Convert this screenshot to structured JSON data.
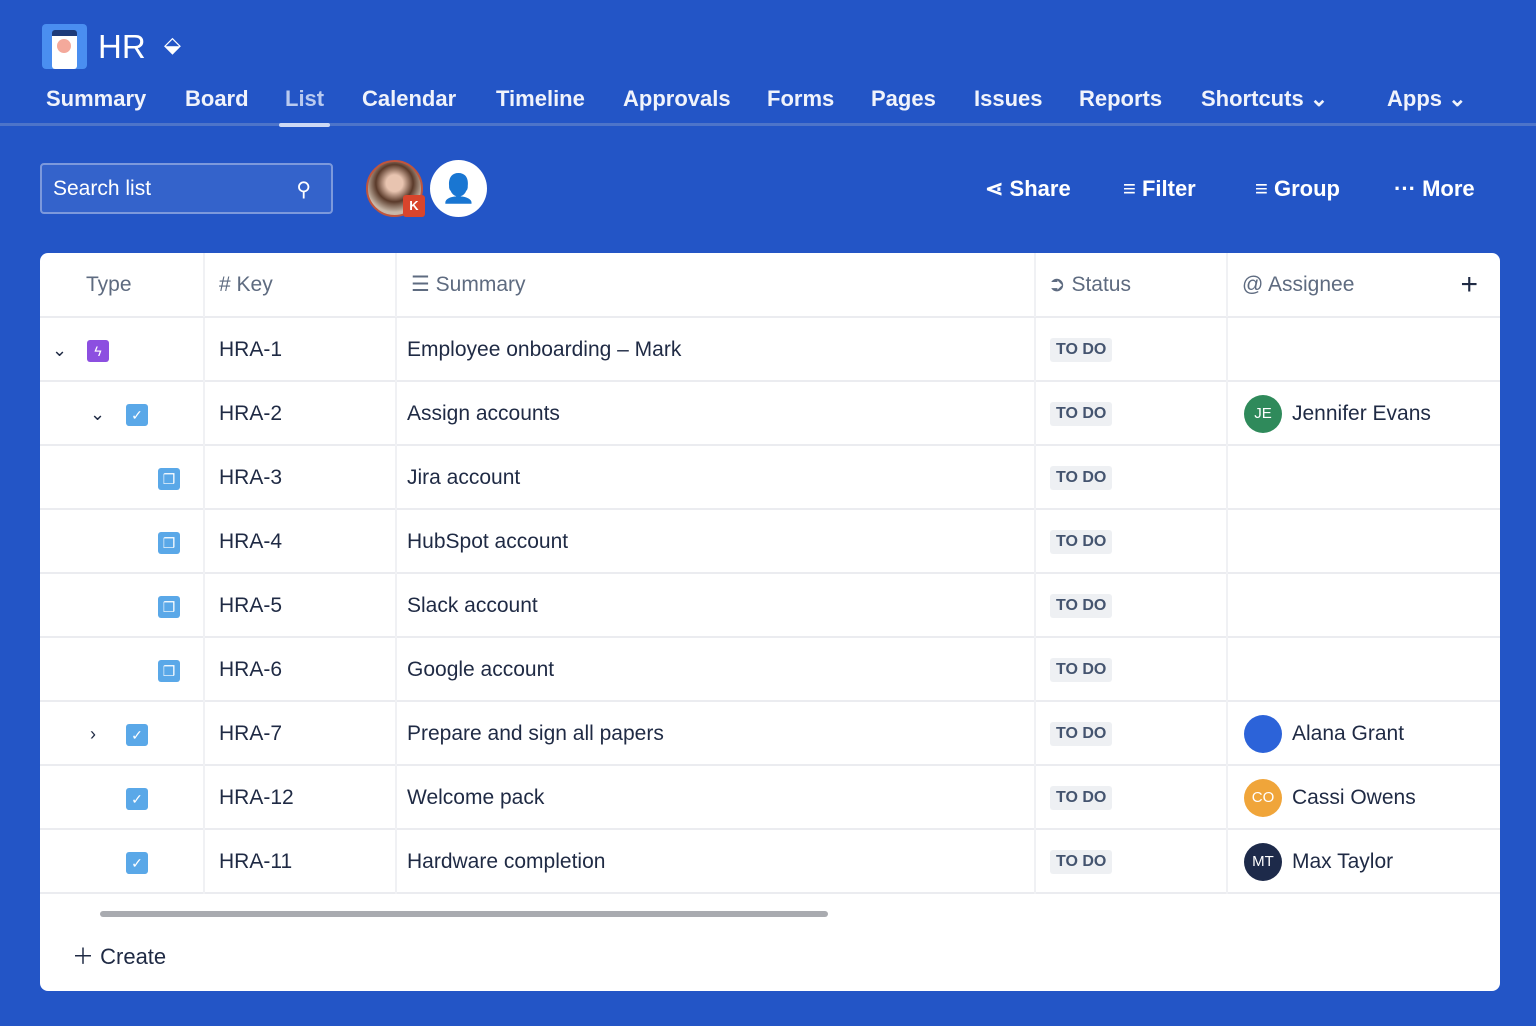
{
  "project": {
    "title": "HR",
    "logo_icon": "hr-project-logo",
    "theme_icon": "paint-bucket-icon"
  },
  "tabs": [
    {
      "label": "Summary"
    },
    {
      "label": "Board"
    },
    {
      "label": "List",
      "active": true
    },
    {
      "label": "Calendar"
    },
    {
      "label": "Timeline"
    },
    {
      "label": "Approvals"
    },
    {
      "label": "Forms"
    },
    {
      "label": "Pages"
    },
    {
      "label": "Issues"
    },
    {
      "label": "Reports"
    },
    {
      "label": "Shortcuts ⌄"
    },
    {
      "label": "Apps ⌄"
    }
  ],
  "search": {
    "placeholder": "Search list"
  },
  "avatar_badge": "K",
  "actions": {
    "share": "Share",
    "filter": "Filter",
    "group": "Group",
    "more": "More"
  },
  "columns": {
    "type": "Type",
    "key": "Key",
    "summary": "Summary",
    "status": "Status",
    "assignee": "Assignee"
  },
  "rows": [
    {
      "key": "HRA-1",
      "summary": "Employee onboarding – Mark",
      "status": "TO DO",
      "type": "epic",
      "level": 0,
      "expander": "⌄",
      "assignee": "",
      "initials": ""
    },
    {
      "key": "HRA-2",
      "summary": "Assign accounts",
      "status": "TO DO",
      "type": "task",
      "level": 1,
      "expander": "⌄",
      "assignee": "Jennifer Evans",
      "initials": "JE",
      "color": "#2f8a5b"
    },
    {
      "key": "HRA-3",
      "summary": "Jira account",
      "status": "TO DO",
      "type": "subtask",
      "level": 2,
      "expander": "",
      "assignee": "",
      "initials": ""
    },
    {
      "key": "HRA-4",
      "summary": "HubSpot account",
      "status": "TO DO",
      "type": "subtask",
      "level": 2,
      "expander": "",
      "assignee": "",
      "initials": ""
    },
    {
      "key": "HRA-5",
      "summary": "Slack account",
      "status": "TO DO",
      "type": "subtask",
      "level": 2,
      "expander": "",
      "assignee": "",
      "initials": ""
    },
    {
      "key": "HRA-6",
      "summary": "Google account",
      "status": "TO DO",
      "type": "subtask",
      "level": 2,
      "expander": "",
      "assignee": "",
      "initials": ""
    },
    {
      "key": "HRA-7",
      "summary": "Prepare and sign all papers",
      "status": "TO DO",
      "type": "task",
      "level": 1,
      "expander": "›",
      "assignee": "Alana Grant",
      "initials": "",
      "color": "#2c63d9"
    },
    {
      "key": "HRA-12",
      "summary": "Welcome pack",
      "status": "TO DO",
      "type": "task",
      "level": 1,
      "expander": "",
      "assignee": "Cassi Owens",
      "initials": "CO",
      "color": "#f0a53a"
    },
    {
      "key": "HRA-11",
      "summary": "Hardware completion",
      "status": "TO DO",
      "type": "task",
      "level": 1,
      "expander": "",
      "assignee": "Max Taylor",
      "initials": "MT",
      "color": "#1d2a4a"
    }
  ],
  "create_label": "Create"
}
